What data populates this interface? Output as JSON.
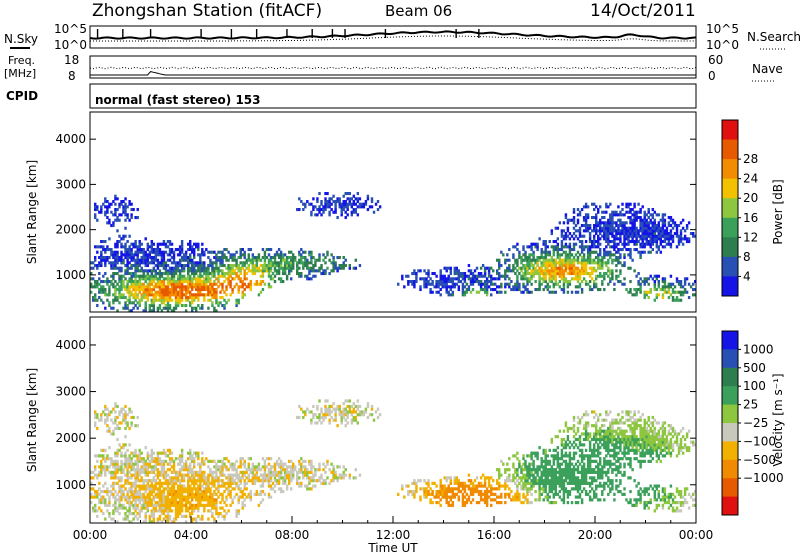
{
  "header": {
    "station": "Zhongshan Station (fitACF)",
    "beam": "Beam 06",
    "date": "14/Oct/2011"
  },
  "strip_labels": {
    "nsky": "N.Sky",
    "nsearch": "N.Search",
    "freq_line1": "Freq.",
    "freq_line2": "[MHz]",
    "nave": "Nave",
    "cpid": "CPID",
    "cpid_value": "normal (fast stereo) 153"
  },
  "strip_ticks": {
    "noise_top_left": "10^5",
    "noise_bottom_left": "10^0",
    "noise_top_right": "10^5",
    "noise_bottom_right": "10^0",
    "freq_top": "18",
    "freq_bottom": "8",
    "nave_top": "60",
    "nave_bottom": "0"
  },
  "colors": {
    "power_scale": [
      "#1414e6",
      "#2850b4",
      "#2e7d4f",
      "#3aa05a",
      "#8dc63f",
      "#f2c200",
      "#f28c00",
      "#e85a00",
      "#e01010"
    ],
    "velocity_scale": [
      "#1414e6",
      "#2850b4",
      "#2e7d4f",
      "#3aa05a",
      "#8dc63f",
      "#c8c8bc",
      "#f2b000",
      "#f08a00",
      "#e85a00",
      "#e01010"
    ]
  },
  "chart_data": [
    {
      "type": "heatmap",
      "name": "power",
      "ylabel": "Slant Range [km]",
      "ylim": [
        180,
        4600
      ],
      "yticks": [
        1000,
        2000,
        3000,
        4000
      ],
      "colorbar_label": "Power [dB]",
      "colorbar_ticks": [
        "4",
        "8",
        "12",
        "16",
        "20",
        "24",
        "28"
      ]
    },
    {
      "type": "heatmap",
      "name": "velocity",
      "ylabel": "Slant Range [km]",
      "xlabel": "Time UT",
      "ylim": [
        180,
        4600
      ],
      "yticks": [
        1000,
        2000,
        3000,
        4000
      ],
      "xticks": [
        "00:00",
        "04:00",
        "08:00",
        "12:00",
        "16:00",
        "20:00",
        "00:00"
      ],
      "colorbar_label": "Velocity [m s⁻¹]",
      "colorbar_ticks": [
        "1000",
        "500",
        "100",
        "25",
        "−25",
        "−100",
        "−500",
        "−1000"
      ]
    }
  ]
}
